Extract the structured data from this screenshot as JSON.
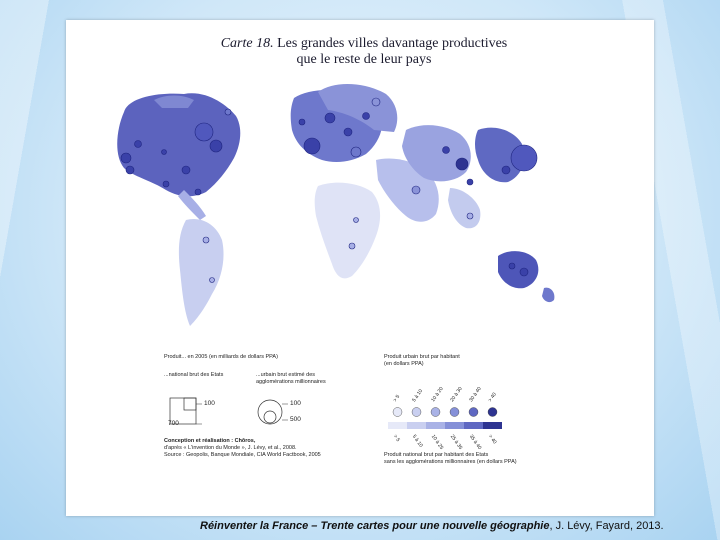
{
  "map": {
    "title_number": "Carte 18.",
    "title_line1": "Les grandes villes davantage productives",
    "title_line2": "que le reste de leur pays"
  },
  "legend": {
    "product_heading": "Produit... en 2005 (en milliards de dollars PPA)",
    "national_label": "...national brut des Etats",
    "urban_label_line1": "...urbain brut estimé des",
    "urban_label_line2": "agglomérations millionnaires",
    "square_small_value": "100",
    "square_large_value": "700",
    "circle_small_value": "100",
    "circle_large_value": "500",
    "urban_per_capita_heading_line1": "Produit urbain brut par habitant",
    "urban_per_capita_heading_line2": "(en dollars PPA)",
    "national_per_capita_line1": "Produit national brut par habitant des Etats",
    "national_per_capita_line2": "sans les agglomérations millionnaires (en dollars PPA)",
    "top_ticks": [
      "> 5",
      "5 à 10",
      "10 à 20",
      "20 à 30",
      "30 à 40",
      "> 40"
    ],
    "bottom_ticks": [
      "> 5",
      "5 à 10",
      "10 à 25",
      "25 à 35",
      "35 à 40",
      "> 40"
    ],
    "class_colors": [
      "#e6e9f8",
      "#c9cff0",
      "#a9b2e6",
      "#8590d8",
      "#5f68c2",
      "#2e3491"
    ],
    "credits_line1": "Conception et réalisation : Chôros,",
    "credits_line2": "d'après « L'invention du Monde », J. Lévy, et al., 2008.",
    "source_line": "Source : Geopolis, Banque Mondiale, CIA World Factbook, 2005"
  },
  "caption": {
    "title": "Réinventer la France – Trente cartes pour une nouvelle géographie",
    "rest": ", J. Lévy, Fayard, 2013."
  }
}
